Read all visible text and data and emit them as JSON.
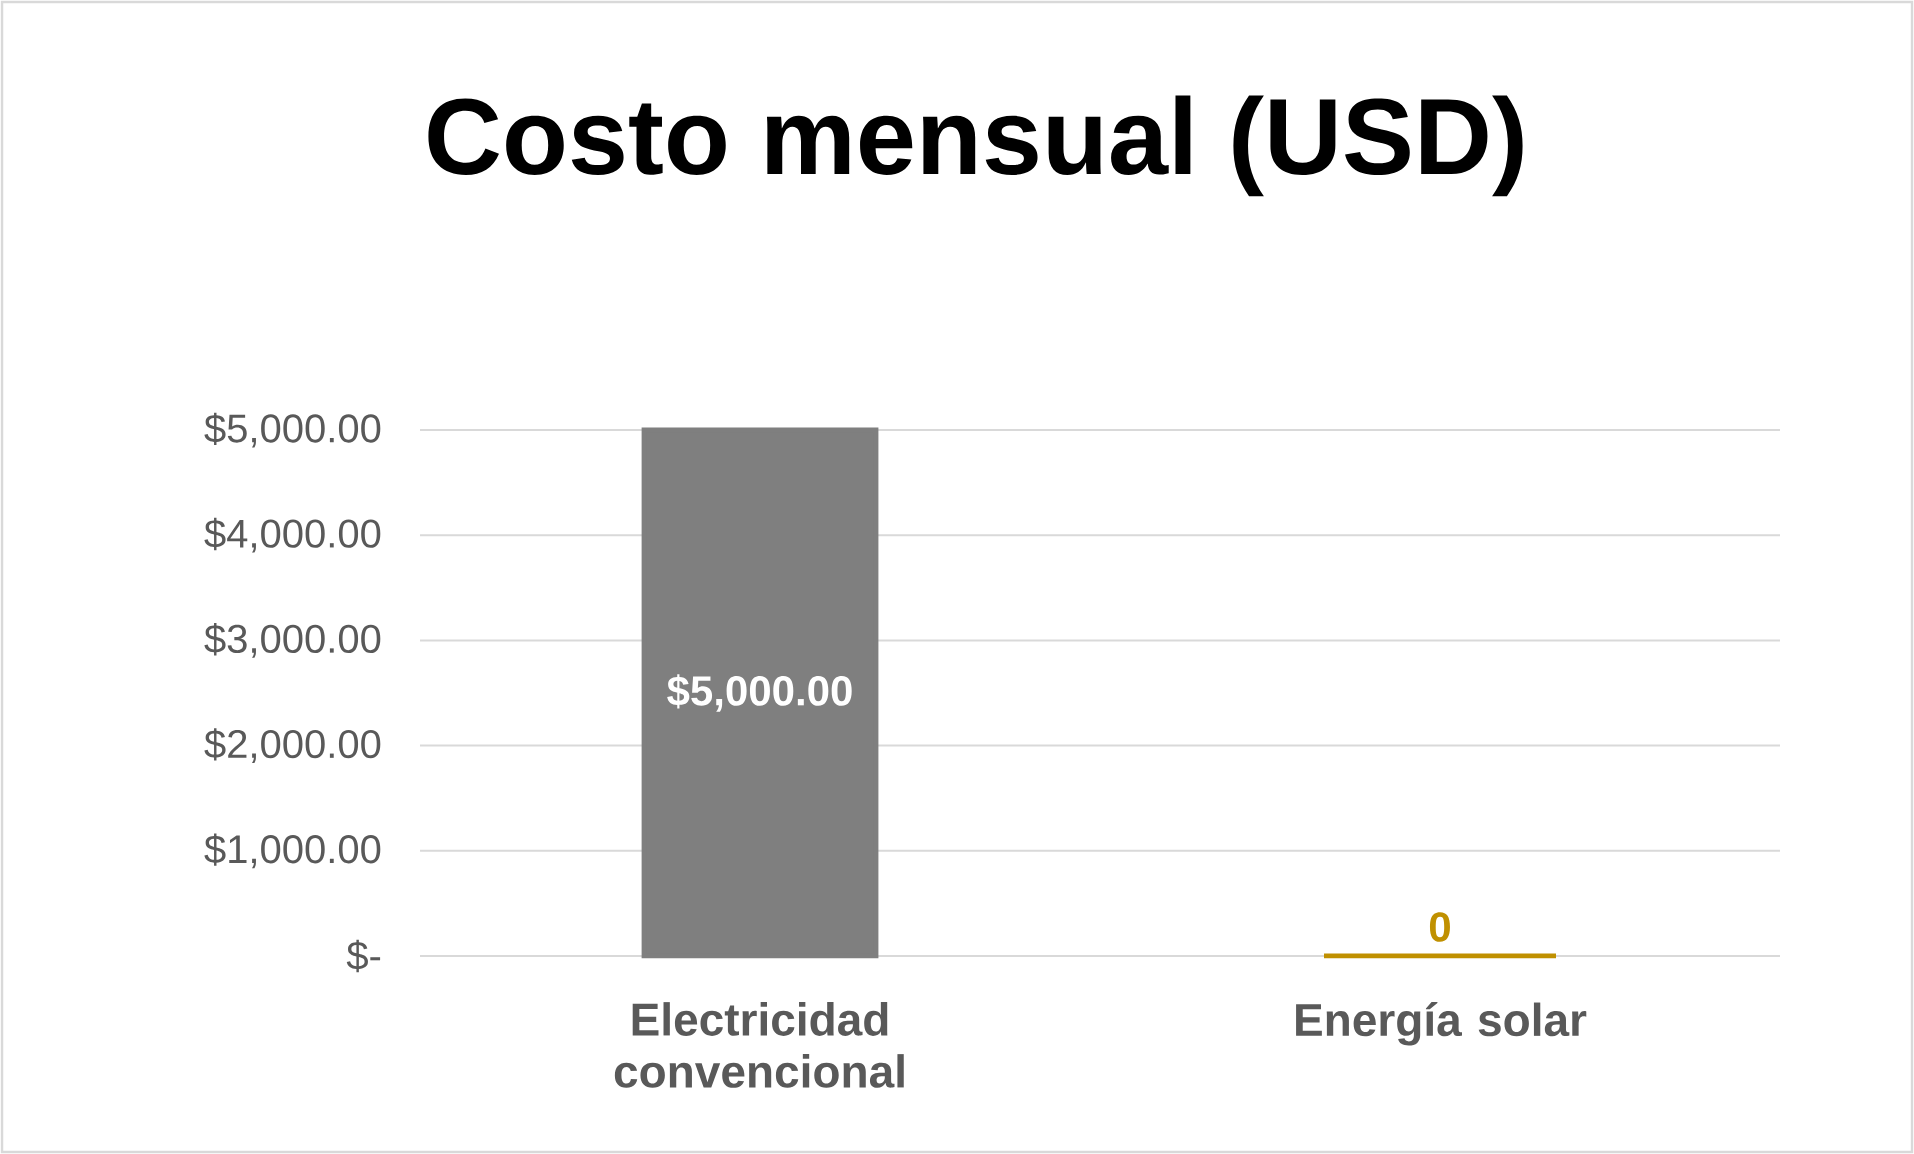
{
  "chart_data": {
    "type": "bar",
    "title": "Costo mensual (USD)",
    "categories": [
      "Electricidad convencional",
      "Energía solar"
    ],
    "values": [
      5000,
      0
    ],
    "colors": [
      "#7f7f7f",
      "#c09000"
    ],
    "value_labels": [
      "$5,000.00",
      "0"
    ],
    "ylim": [
      0,
      5000
    ],
    "yticks": [
      {
        "value": 0,
        "label": "$-"
      },
      {
        "value": 1000,
        "label": "$1,000.00"
      },
      {
        "value": 2000,
        "label": "$2,000.00"
      },
      {
        "value": 3000,
        "label": "$3,000.00"
      },
      {
        "value": 4000,
        "label": "$4,000.00"
      },
      {
        "value": 5000,
        "label": "$5,000.00"
      }
    ],
    "grid": "y"
  }
}
